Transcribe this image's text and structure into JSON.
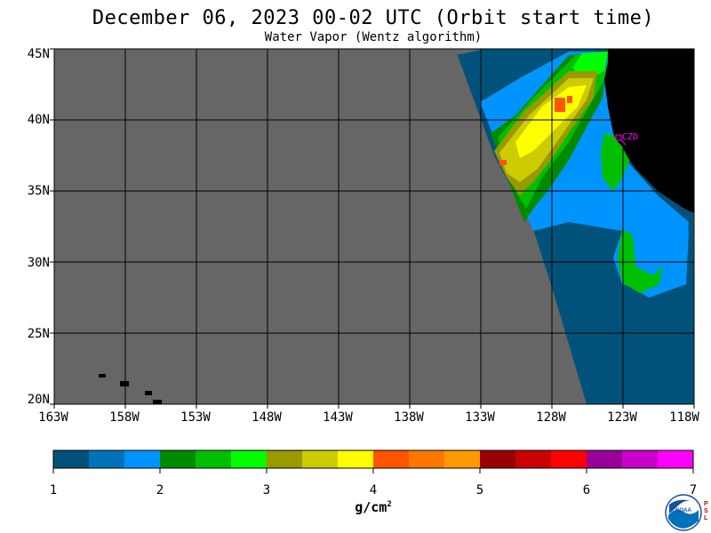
{
  "title": "December 06, 2023  00-02 UTC  (Orbit start time)",
  "subtitle": "Water Vapor (Wentz algorithm)",
  "lat_labels": [
    "45N",
    "40N",
    "35N",
    "30N",
    "25N",
    "20N"
  ],
  "lon_labels": [
    "163W",
    "158W",
    "153W",
    "148W",
    "143W",
    "138W",
    "133W",
    "128W",
    "123W",
    "118W"
  ],
  "station_label": "CZD",
  "colorbar": {
    "ticks": [
      "1",
      "2",
      "3",
      "4",
      "5",
      "6",
      "7"
    ],
    "unit_base": "g/cm",
    "unit_exp": "2",
    "colors": [
      "#00527a",
      "#0073b8",
      "#0094ff",
      "#008a00",
      "#00bf00",
      "#00ff00",
      "#999900",
      "#cccc00",
      "#ffff00",
      "#ff5500",
      "#ff7700",
      "#ff9900",
      "#990000",
      "#cc0000",
      "#ff0000",
      "#990099",
      "#cc00cc",
      "#ff00ff"
    ]
  },
  "colors": {
    "no_data": "#666666",
    "land": "#000000",
    "station": "#ff00ff"
  },
  "logo_letters": "PSL",
  "logo_text": "NOAA"
}
